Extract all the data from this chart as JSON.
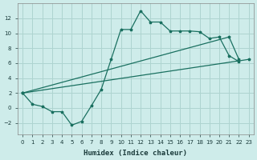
{
  "bg_color": "#ceecea",
  "grid_color": "#aed4d0",
  "line_color": "#1a7060",
  "xlabel": "Humidex (Indice chaleur)",
  "xlim": [
    -0.5,
    23.5
  ],
  "ylim": [
    -3.5,
    14
  ],
  "xticks": [
    0,
    1,
    2,
    3,
    4,
    5,
    6,
    7,
    8,
    9,
    10,
    11,
    12,
    13,
    14,
    15,
    16,
    17,
    18,
    19,
    20,
    21,
    22,
    23
  ],
  "yticks": [
    -2,
    0,
    2,
    4,
    6,
    8,
    10,
    12
  ],
  "line1_x": [
    0,
    1,
    2,
    3,
    4,
    5,
    6,
    7,
    8,
    9,
    10,
    11,
    12,
    13,
    14,
    15,
    16,
    17,
    18,
    19,
    20,
    21,
    22
  ],
  "line1_y": [
    2.0,
    0.5,
    0.2,
    -0.5,
    -0.5,
    -2.3,
    -1.8,
    0.3,
    2.5,
    6.5,
    10.5,
    10.5,
    13.0,
    11.5,
    11.5,
    10.3,
    10.3,
    10.3,
    10.2,
    9.3,
    9.5,
    7.0,
    6.2
  ],
  "line2_x": [
    0,
    21,
    22
  ],
  "line2_y": [
    2.0,
    9.5,
    6.5
  ],
  "line3_x": [
    0,
    23
  ],
  "line3_y": [
    2.0,
    6.5
  ],
  "font_color": "#1a3a3a"
}
